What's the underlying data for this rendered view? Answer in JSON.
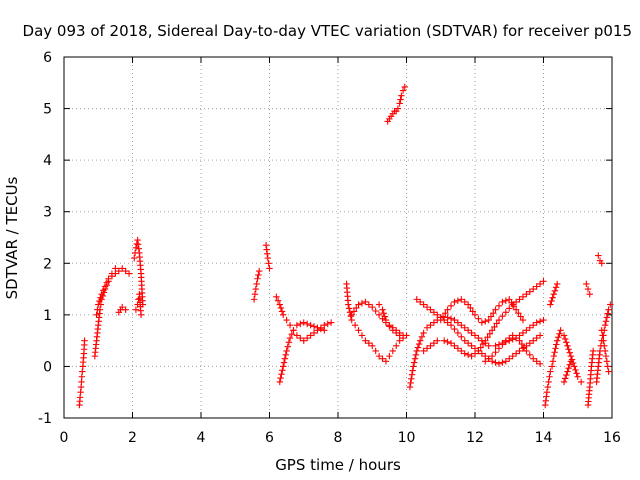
{
  "chart_data": {
    "type": "scatter",
    "title": "Day 093 of 2018, Sidereal Day-to-day VTEC variation (SDTVAR) for receiver p015",
    "xlabel": "GPS time / hours",
    "ylabel": "SDTVAR / TECUs",
    "xlim": [
      0,
      16
    ],
    "ylim": [
      -1,
      6
    ],
    "xticks": [
      0,
      2,
      4,
      6,
      8,
      10,
      12,
      14,
      16
    ],
    "yticks": [
      -1,
      0,
      1,
      2,
      3,
      4,
      5,
      6
    ],
    "grid": true,
    "marker": "+",
    "color": "#ff0000",
    "series": [
      {
        "name": "SDTVAR",
        "segments": [
          {
            "x": [
              0.45,
              0.47,
              0.5,
              0.52,
              0.55,
              0.58,
              0.6
            ],
            "y": [
              -0.75,
              -0.6,
              -0.4,
              -0.2,
              0.0,
              0.25,
              0.5
            ]
          },
          {
            "x": [
              0.9,
              0.95,
              1.0,
              1.05,
              1.1,
              1.2,
              1.3,
              1.4,
              1.5,
              1.6,
              1.7,
              1.8,
              1.9
            ],
            "y": [
              0.2,
              0.5,
              0.8,
              1.1,
              1.3,
              1.5,
              1.65,
              1.75,
              1.8,
              1.85,
              1.9,
              1.85,
              1.8
            ]
          },
          {
            "x": [
              0.95,
              1.0,
              1.1,
              1.2,
              1.3,
              1.4,
              1.5
            ],
            "y": [
              1.0,
              1.2,
              1.4,
              1.55,
              1.7,
              1.8,
              1.9
            ]
          },
          {
            "x": [
              1.6,
              1.65,
              1.7,
              1.8
            ],
            "y": [
              1.05,
              1.1,
              1.15,
              1.1
            ]
          },
          {
            "x": [
              2.05,
              2.1,
              2.15,
              2.2,
              2.25,
              2.3
            ],
            "y": [
              2.1,
              2.3,
              2.45,
              2.2,
              1.8,
              1.2
            ]
          },
          {
            "x": [
              2.1,
              2.15,
              2.2,
              2.25
            ],
            "y": [
              1.1,
              1.2,
              1.4,
              1.0
            ]
          },
          {
            "x": [
              9.45,
              9.5,
              9.55,
              9.6,
              9.65,
              9.7,
              9.75,
              9.8,
              9.85,
              9.9,
              9.95
            ],
            "y": [
              4.75,
              4.8,
              4.85,
              4.9,
              4.95,
              4.95,
              5.0,
              5.1,
              5.25,
              5.35,
              5.42
            ]
          },
          {
            "x": [
              5.55,
              5.6,
              5.65,
              5.7
            ],
            "y": [
              1.3,
              1.5,
              1.7,
              1.85
            ]
          },
          {
            "x": [
              5.9,
              5.95,
              6.0
            ],
            "y": [
              2.35,
              2.1,
              1.9
            ]
          },
          {
            "x": [
              6.2,
              6.3,
              6.4,
              6.5,
              6.6,
              6.7,
              6.8,
              6.9,
              7.0,
              7.2,
              7.4,
              7.6,
              7.8
            ],
            "y": [
              1.35,
              1.2,
              1.0,
              0.9,
              0.8,
              0.7,
              0.6,
              0.55,
              0.5,
              0.6,
              0.7,
              0.8,
              0.85
            ]
          },
          {
            "x": [
              6.3,
              6.4,
              6.5,
              6.6,
              6.7,
              6.8,
              7.0,
              7.2,
              7.4,
              7.6
            ],
            "y": [
              -0.3,
              0.0,
              0.3,
              0.55,
              0.7,
              0.8,
              0.85,
              0.8,
              0.75,
              0.7
            ]
          },
          {
            "x": [
              8.25,
              8.3,
              8.4,
              8.5,
              8.6,
              8.7,
              8.8,
              8.9,
              9.0,
              9.1,
              9.2,
              9.3,
              9.4,
              9.5,
              9.6,
              9.7,
              9.8,
              9.9,
              10.0
            ],
            "y": [
              1.6,
              1.2,
              0.9,
              0.8,
              0.7,
              0.6,
              0.5,
              0.45,
              0.4,
              0.3,
              0.2,
              0.15,
              0.1,
              0.2,
              0.3,
              0.4,
              0.5,
              0.55,
              0.6
            ]
          },
          {
            "x": [
              8.4,
              8.6,
              8.8,
              9.0,
              9.2,
              9.4,
              9.6,
              9.8
            ],
            "y": [
              1.0,
              1.2,
              1.25,
              1.15,
              1.0,
              0.85,
              0.7,
              0.6
            ]
          },
          {
            "x": [
              9.2,
              9.3,
              9.4,
              9.5,
              9.6,
              9.7,
              9.8,
              9.9
            ],
            "y": [
              1.2,
              1.1,
              0.9,
              0.8,
              0.75,
              0.7,
              0.65,
              0.6
            ]
          },
          {
            "x": [
              10.1,
              10.2,
              10.3,
              10.4,
              10.5,
              10.6,
              10.7,
              10.8,
              10.9,
              11.0,
              11.2,
              11.4,
              11.6,
              11.8,
              12.0,
              12.2,
              12.4,
              12.6,
              12.8,
              13.0,
              13.2,
              13.4,
              13.6,
              13.8,
              14.0
            ],
            "y": [
              -0.4,
              0.0,
              0.3,
              0.5,
              0.65,
              0.75,
              0.8,
              0.85,
              0.9,
              0.95,
              0.95,
              0.9,
              0.8,
              0.7,
              0.6,
              0.5,
              0.4,
              0.4,
              0.45,
              0.5,
              0.55,
              0.65,
              0.75,
              0.85,
              0.9
            ]
          },
          {
            "x": [
              10.3,
              10.5,
              10.7,
              10.9,
              11.1,
              11.3,
              11.5,
              11.7,
              11.9,
              12.1,
              12.3,
              12.5,
              12.7,
              12.9,
              13.1,
              13.3,
              13.5,
              13.7,
              13.9
            ],
            "y": [
              1.3,
              1.2,
              1.1,
              1.0,
              0.9,
              0.8,
              0.65,
              0.5,
              0.4,
              0.3,
              0.2,
              0.1,
              0.05,
              0.1,
              0.2,
              0.3,
              0.4,
              0.5,
              0.6
            ]
          },
          {
            "x": [
              10.5,
              10.7,
              10.9,
              11.1,
              11.3,
              11.5,
              11.7,
              11.9,
              12.1,
              12.3,
              12.5,
              12.7,
              12.9,
              13.1,
              13.3,
              13.5,
              13.7,
              13.9,
              14.0
            ],
            "y": [
              0.3,
              0.4,
              0.5,
              0.5,
              0.45,
              0.35,
              0.25,
              0.2,
              0.3,
              0.5,
              0.7,
              0.9,
              1.05,
              1.2,
              1.3,
              1.4,
              1.5,
              1.6,
              1.65
            ]
          },
          {
            "x": [
              11.0,
              11.2,
              11.4,
              11.6,
              11.8,
              12.0,
              12.2,
              12.4,
              12.6,
              12.8,
              13.0,
              13.2,
              13.4
            ],
            "y": [
              0.9,
              1.1,
              1.25,
              1.3,
              1.2,
              1.0,
              0.85,
              0.9,
              1.1,
              1.25,
              1.3,
              1.1,
              0.9
            ]
          },
          {
            "x": [
              12.3,
              12.5,
              12.7,
              12.9,
              13.1,
              13.3,
              13.5,
              13.7,
              13.9
            ],
            "y": [
              0.1,
              0.2,
              0.35,
              0.5,
              0.6,
              0.5,
              0.3,
              0.15,
              0.05
            ]
          },
          {
            "x": [
              14.05,
              14.1,
              14.15,
              14.2,
              14.25,
              14.3,
              14.4,
              14.5,
              14.6,
              14.7,
              14.8,
              14.9,
              15.0,
              15.1
            ],
            "y": [
              -0.75,
              -0.5,
              -0.3,
              -0.1,
              0.0,
              0.2,
              0.5,
              0.7,
              0.6,
              0.4,
              0.2,
              0.0,
              -0.2,
              -0.3
            ]
          },
          {
            "x": [
              14.2,
              14.3,
              14.4
            ],
            "y": [
              1.2,
              1.4,
              1.6
            ]
          },
          {
            "x": [
              14.6,
              14.7,
              14.8
            ],
            "y": [
              -0.3,
              -0.1,
              0.1
            ]
          },
          {
            "x": [
              15.25,
              15.3,
              15.35
            ],
            "y": [
              1.6,
              1.5,
              1.4
            ]
          },
          {
            "x": [
              15.3,
              15.35,
              15.4,
              15.45
            ],
            "y": [
              -0.75,
              -0.4,
              0.0,
              0.3
            ]
          },
          {
            "x": [
              15.6,
              15.65,
              15.7
            ],
            "y": [
              2.15,
              2.05,
              2.0
            ]
          },
          {
            "x": [
              15.55,
              15.6,
              15.65,
              15.7,
              15.75,
              15.8,
              15.85,
              15.9,
              15.95
            ],
            "y": [
              -0.3,
              0.0,
              0.3,
              0.5,
              0.6,
              0.8,
              0.95,
              1.1,
              1.2
            ]
          },
          {
            "x": [
              15.7,
              15.75,
              15.8,
              15.85,
              15.9
            ],
            "y": [
              0.7,
              0.5,
              0.3,
              0.1,
              -0.1
            ]
          }
        ]
      }
    ]
  }
}
